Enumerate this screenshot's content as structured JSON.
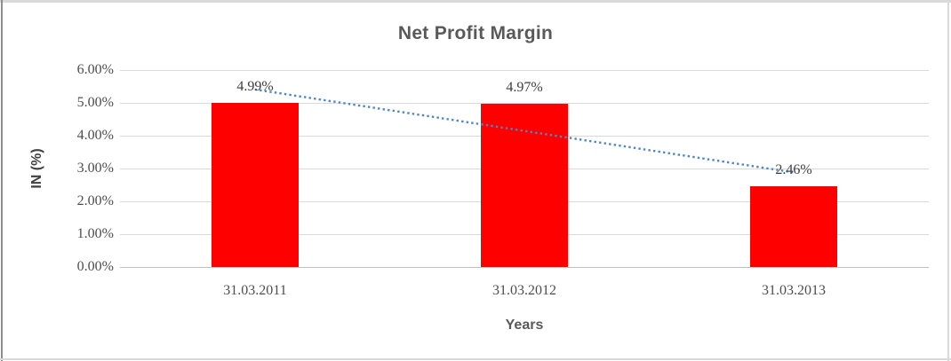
{
  "chart_data": {
    "type": "bar",
    "title": "Net Profit Margin",
    "xlabel": "Years",
    "ylabel": "IN (%)",
    "categories": [
      "31.03.2011",
      "31.03.2012",
      "31.03.2013"
    ],
    "values": [
      4.99,
      4.97,
      2.46
    ],
    "data_labels": [
      "4.99%",
      "4.97%",
      "2.46%"
    ],
    "yticks": [
      "6.00%",
      "5.00%",
      "4.00%",
      "3.00%",
      "2.00%",
      "1.00%",
      "0.00%"
    ],
    "ylim": [
      0,
      6
    ],
    "grid": true,
    "legend": "none",
    "bar_color": "#ff0000",
    "trendline": {
      "type": "linear",
      "style": "dotted",
      "color": "#4e86c4",
      "start_value": 5.41,
      "end_value": 2.88
    }
  },
  "colors": {
    "gridline": "#d9d9d9",
    "axis_line": "#bfbfbf",
    "title_text": "#595959",
    "label_text": "#4d4d4d"
  }
}
